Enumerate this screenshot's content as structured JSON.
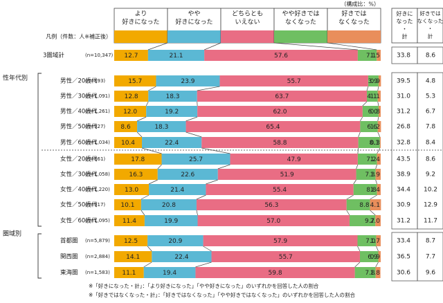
{
  "unit_note": "（構成比：%）",
  "legend_label": "凡例（件数：人※補正後）",
  "summary_headers": [
    "好きになった・計",
    "好きではなくなった・計"
  ],
  "colors": [
    "#F2A900",
    "#5BB8D4",
    "#E96D84",
    "#6FBF62",
    "#E98E5B"
  ],
  "group_labels": [
    "性年代別",
    "圏域別"
  ],
  "footnotes": [
    "※「好きになった・計」：「より好きになった」「やや好きになった」のいずれかを回答した人の割合",
    "※「好きではなくなった・計」：「好きではなくなった」「やや好きではなくなった」のいずれかを回答した人の割合"
  ],
  "chart_data": {
    "type": "bar",
    "stacked": true,
    "orientation": "horizontal",
    "percent": true,
    "legend": [
      "より好きになった",
      "やや好きになった",
      "どちらともいえない",
      "やや好きではなくなった",
      "好きではなくなった"
    ],
    "legend_lines": [
      [
        "より",
        "好きになった"
      ],
      [
        "やや",
        "好きになった"
      ],
      [
        "どちらとも",
        "いえない"
      ],
      [
        "やや好きでは",
        "なくなった"
      ],
      [
        "好きでは",
        "なくなった"
      ]
    ],
    "rows": [
      {
        "label": "3圏域計",
        "n": "(n=10,347)",
        "values": [
          12.7,
          21.1,
          57.6,
          7.1,
          1.5
        ],
        "like": 33.8,
        "dislike": 8.6
      },
      {
        "label": "男性／20歳代",
        "n": "(n=893)",
        "values": [
          15.7,
          23.9,
          55.7,
          3.9,
          0.9
        ],
        "like": 39.5,
        "dislike": 4.8
      },
      {
        "label": "男性／30歳代",
        "n": "(n=1,091)",
        "values": [
          12.8,
          18.3,
          63.7,
          4.1,
          1.1
        ],
        "like": 31.0,
        "dislike": 5.3
      },
      {
        "label": "男性／40歳代",
        "n": "(n=1,261)",
        "values": [
          12.0,
          19.2,
          62.0,
          6.0,
          0.8
        ],
        "like": 31.2,
        "dislike": 6.7
      },
      {
        "label": "男性／50歳代",
        "n": "(n=927)",
        "values": [
          8.6,
          18.3,
          65.4,
          6.6,
          1.2
        ],
        "like": 26.8,
        "dislike": 7.8
      },
      {
        "label": "男性／60歳代",
        "n": "(n=1,034)",
        "values": [
          10.4,
          22.4,
          58.8,
          8.1,
          0.3
        ],
        "like": 32.8,
        "dislike": 8.4
      },
      {
        "label": "女性／20歳代",
        "n": "(n=861)",
        "values": [
          17.8,
          25.7,
          47.9,
          7.2,
          1.4
        ],
        "like": 43.5,
        "dislike": 8.6
      },
      {
        "label": "女性／30歳代",
        "n": "(n=1,058)",
        "values": [
          16.3,
          22.6,
          51.9,
          7.3,
          1.9
        ],
        "like": 38.9,
        "dislike": 9.2
      },
      {
        "label": "女性／40歳代",
        "n": "(n=1,220)",
        "values": [
          13.0,
          21.4,
          55.4,
          8.8,
          1.4
        ],
        "like": 34.4,
        "dislike": 10.2
      },
      {
        "label": "女性／50歳代",
        "n": "(n=917)",
        "values": [
          10.1,
          20.8,
          56.3,
          8.8,
          4.1
        ],
        "like": 30.9,
        "dislike": 12.9
      },
      {
        "label": "女性／60歳代",
        "n": "(n=1,095)",
        "values": [
          11.4,
          19.9,
          57.0,
          9.7,
          2.0
        ],
        "like": 31.2,
        "dislike": 11.7
      },
      {
        "label": "首都圏",
        "n": "(n=5,879)",
        "values": [
          12.5,
          20.9,
          57.9,
          7.0,
          1.7
        ],
        "like": 33.4,
        "dislike": 8.7
      },
      {
        "label": "関西圏",
        "n": "(n=2,884)",
        "values": [
          14.1,
          22.4,
          55.7,
          6.9,
          0.9
        ],
        "like": 36.5,
        "dislike": 7.7
      },
      {
        "label": "東海圏",
        "n": "(n=1,583)",
        "values": [
          11.1,
          19.4,
          59.8,
          7.8,
          1.8
        ],
        "like": 30.6,
        "dislike": 9.6
      }
    ]
  }
}
